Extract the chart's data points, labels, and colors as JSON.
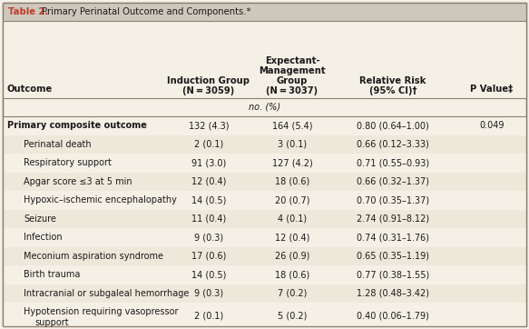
{
  "title_label": "Table 2.",
  "title_rest": " Primary Perinatal Outcome and Components.*",
  "subheader": "no. (%)",
  "col_headers": [
    "Outcome",
    "Induction Group\n(N = 3059)",
    "Expectant-\nManagement\nGroup\n(N = 3037)",
    "Relative Risk\n(95% CI)†",
    "P Value‡"
  ],
  "rows": [
    {
      "outcome": "Primary composite outcome",
      "indent": false,
      "induction": "132 (4.3)",
      "expectant": "164 (5.4)",
      "rr": "0.80 (0.64–1.00)",
      "pval": "0.049",
      "shaded": false
    },
    {
      "outcome": "Perinatal death",
      "indent": true,
      "induction": "2 (0.1)",
      "expectant": "3 (0.1)",
      "rr": "0.66 (0.12–3.33)",
      "pval": "",
      "shaded": true
    },
    {
      "outcome": "Respiratory support",
      "indent": true,
      "induction": "91 (3.0)",
      "expectant": "127 (4.2)",
      "rr": "0.71 (0.55–0.93)",
      "pval": "",
      "shaded": false
    },
    {
      "outcome": "Apgar score ≤3 at 5 min",
      "indent": true,
      "induction": "12 (0.4)",
      "expectant": "18 (0.6)",
      "rr": "0.66 (0.32–1.37)",
      "pval": "",
      "shaded": true
    },
    {
      "outcome": "Hypoxic–ischemic encephalopathy",
      "indent": true,
      "induction": "14 (0.5)",
      "expectant": "20 (0.7)",
      "rr": "0.70 (0.35–1.37)",
      "pval": "",
      "shaded": false
    },
    {
      "outcome": "Seizure",
      "indent": true,
      "induction": "11 (0.4)",
      "expectant": "4 (0.1)",
      "rr": "2.74 (0.91–8.12)",
      "pval": "",
      "shaded": true
    },
    {
      "outcome": "Infection",
      "indent": true,
      "induction": "9 (0.3)",
      "expectant": "12 (0.4)",
      "rr": "0.74 (0.31–1.76)",
      "pval": "",
      "shaded": false
    },
    {
      "outcome": "Meconium aspiration syndrome",
      "indent": true,
      "induction": "17 (0.6)",
      "expectant": "26 (0.9)",
      "rr": "0.65 (0.35–1.19)",
      "pval": "",
      "shaded": true
    },
    {
      "outcome": "Birth trauma",
      "indent": true,
      "induction": "14 (0.5)",
      "expectant": "18 (0.6)",
      "rr": "0.77 (0.38–1.55)",
      "pval": "",
      "shaded": false
    },
    {
      "outcome": "Intracranial or subgaleal hemorrhage",
      "indent": true,
      "induction": "9 (0.3)",
      "expectant": "7 (0.2)",
      "rr": "1.28 (0.48–3.42)",
      "pval": "",
      "shaded": true
    },
    {
      "outcome": "Hypotension requiring vasopressor\nsupport",
      "indent": true,
      "induction": "2 (0.1)",
      "expectant": "5 (0.2)",
      "rr": "0.40 (0.06–1.79)",
      "pval": "",
      "shaded": false
    }
  ],
  "bg_color": "#f5f0e6",
  "title_bg": "#cec8bc",
  "shaded_row_color": "#ede8da",
  "unshaded_row_color": "#f5f0e6",
  "border_color": "#8a8070",
  "title_color": "#c0392b",
  "text_color": "#1a1a1a"
}
